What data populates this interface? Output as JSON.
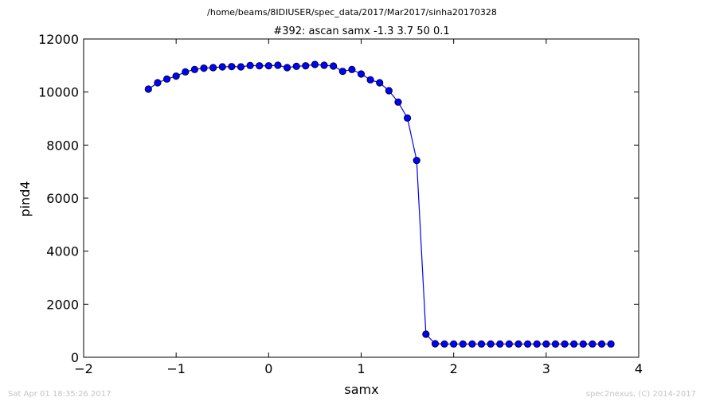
{
  "chart_data": {
    "type": "line",
    "suptitle": "/home/beams/8IDIUSER/spec_data/2017/Mar2017/sinha20170328",
    "title": "#392: ascan  samx -1.3 3.7  50 0.1",
    "xlabel": "samx",
    "ylabel": "pind4",
    "xlim": [
      -2,
      4
    ],
    "ylim": [
      0,
      12000
    ],
    "xticks": [
      -2,
      -1,
      0,
      1,
      2,
      3,
      4
    ],
    "xtick_labels": [
      "−2",
      "−1",
      "0",
      "1",
      "2",
      "3",
      "4"
    ],
    "yticks": [
      0,
      2000,
      4000,
      6000,
      8000,
      10000,
      12000
    ],
    "ytick_labels": [
      "0",
      "2000",
      "4000",
      "6000",
      "8000",
      "10000",
      "12000"
    ],
    "grid": false,
    "series": [
      {
        "color": "#0000ff",
        "marker": "circle",
        "x": [
          -1.3,
          -1.2,
          -1.1,
          -1.0,
          -0.9,
          -0.8,
          -0.7,
          -0.6,
          -0.5,
          -0.4,
          -0.3,
          -0.2,
          -0.1,
          0.0,
          0.1,
          0.2,
          0.3,
          0.4,
          0.5,
          0.6,
          0.7,
          0.8,
          0.9,
          1.0,
          1.1,
          1.2,
          1.3,
          1.4,
          1.5,
          1.6,
          1.7,
          1.8,
          1.9,
          2.0,
          2.1,
          2.2,
          2.3,
          2.4,
          2.5,
          2.6,
          2.7,
          2.8,
          2.9,
          3.0,
          3.1,
          3.2,
          3.3,
          3.4,
          3.5,
          3.6,
          3.7
        ],
        "y": [
          10110,
          10350,
          10490,
          10600,
          10760,
          10850,
          10900,
          10920,
          10950,
          10960,
          10950,
          11000,
          10990,
          10990,
          11010,
          10920,
          10970,
          10990,
          11040,
          11010,
          10980,
          10780,
          10850,
          10680,
          10460,
          10350,
          10050,
          9620,
          9020,
          7420,
          870,
          510,
          500,
          500,
          500,
          500,
          500,
          500,
          500,
          500,
          500,
          500,
          500,
          500,
          500,
          500,
          500,
          500,
          500,
          500,
          500
        ]
      }
    ]
  },
  "footer": {
    "left": "Sat Apr 01 18:35:26 2017",
    "right": "spec2nexus, (C) 2014-2017"
  }
}
